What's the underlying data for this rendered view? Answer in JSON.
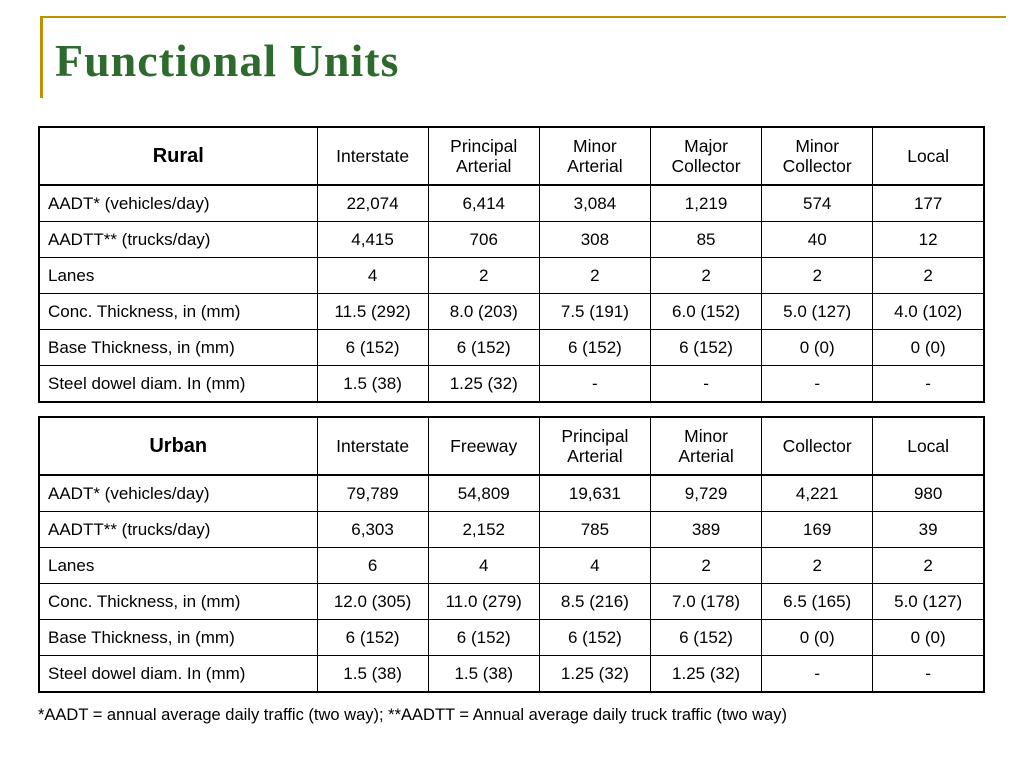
{
  "slide": {
    "title": "Functional Units",
    "footnote": "*AADT = annual average daily traffic (two way); **AADTT = Annual average daily truck traffic (two way)"
  },
  "colors": {
    "title_green": "#2D6A2D",
    "accent_gold": "#BF9000",
    "table_border": "#000000"
  },
  "tables": [
    {
      "title": "Rural",
      "header": [
        "Rural",
        "Interstate",
        "Principal Arterial",
        "Minor Arterial",
        "Major Collector",
        "Minor Collector",
        "Local"
      ],
      "rows": [
        [
          "AADT* (vehicles/day)",
          "22,074",
          "6,414",
          "3,084",
          "1,219",
          "574",
          "177"
        ],
        [
          "AADTT** (trucks/day)",
          "4,415",
          "706",
          "308",
          "85",
          "40",
          "12"
        ],
        [
          "Lanes",
          "4",
          "2",
          "2",
          "2",
          "2",
          "2"
        ],
        [
          "Conc. Thickness, in (mm)",
          "11.5 (292)",
          "8.0 (203)",
          "7.5 (191)",
          "6.0 (152)",
          "5.0 (127)",
          "4.0 (102)"
        ],
        [
          "Base Thickness, in (mm)",
          "6 (152)",
          "6 (152)",
          "6 (152)",
          "6 (152)",
          "0 (0)",
          "0 (0)"
        ],
        [
          "Steel dowel diam. In (mm)",
          "1.5 (38)",
          "1.25 (32)",
          "-",
          "-",
          "-",
          "-"
        ]
      ]
    },
    {
      "title": "Urban",
      "header": [
        "Urban",
        "Interstate",
        "Freeway",
        "Principal Arterial",
        "Minor Arterial",
        "Collector",
        "Local"
      ],
      "rows": [
        [
          "AADT* (vehicles/day)",
          "79,789",
          "54,809",
          "19,631",
          "9,729",
          "4,221",
          "980"
        ],
        [
          "AADTT** (trucks/day)",
          "6,303",
          "2,152",
          "785",
          "389",
          "169",
          "39"
        ],
        [
          "Lanes",
          "6",
          "4",
          "4",
          "2",
          "2",
          "2"
        ],
        [
          "Conc. Thickness, in (mm)",
          "12.0 (305)",
          "11.0 (279)",
          "8.5 (216)",
          "7.0 (178)",
          "6.5 (165)",
          "5.0 (127)"
        ],
        [
          "Base Thickness, in (mm)",
          "6 (152)",
          "6 (152)",
          "6 (152)",
          "6 (152)",
          "0 (0)",
          "0 (0)"
        ],
        [
          "Steel dowel diam. In (mm)",
          "1.5 (38)",
          "1.5 (38)",
          "1.25 (32)",
          "1.25 (32)",
          "-",
          "-"
        ]
      ]
    }
  ]
}
